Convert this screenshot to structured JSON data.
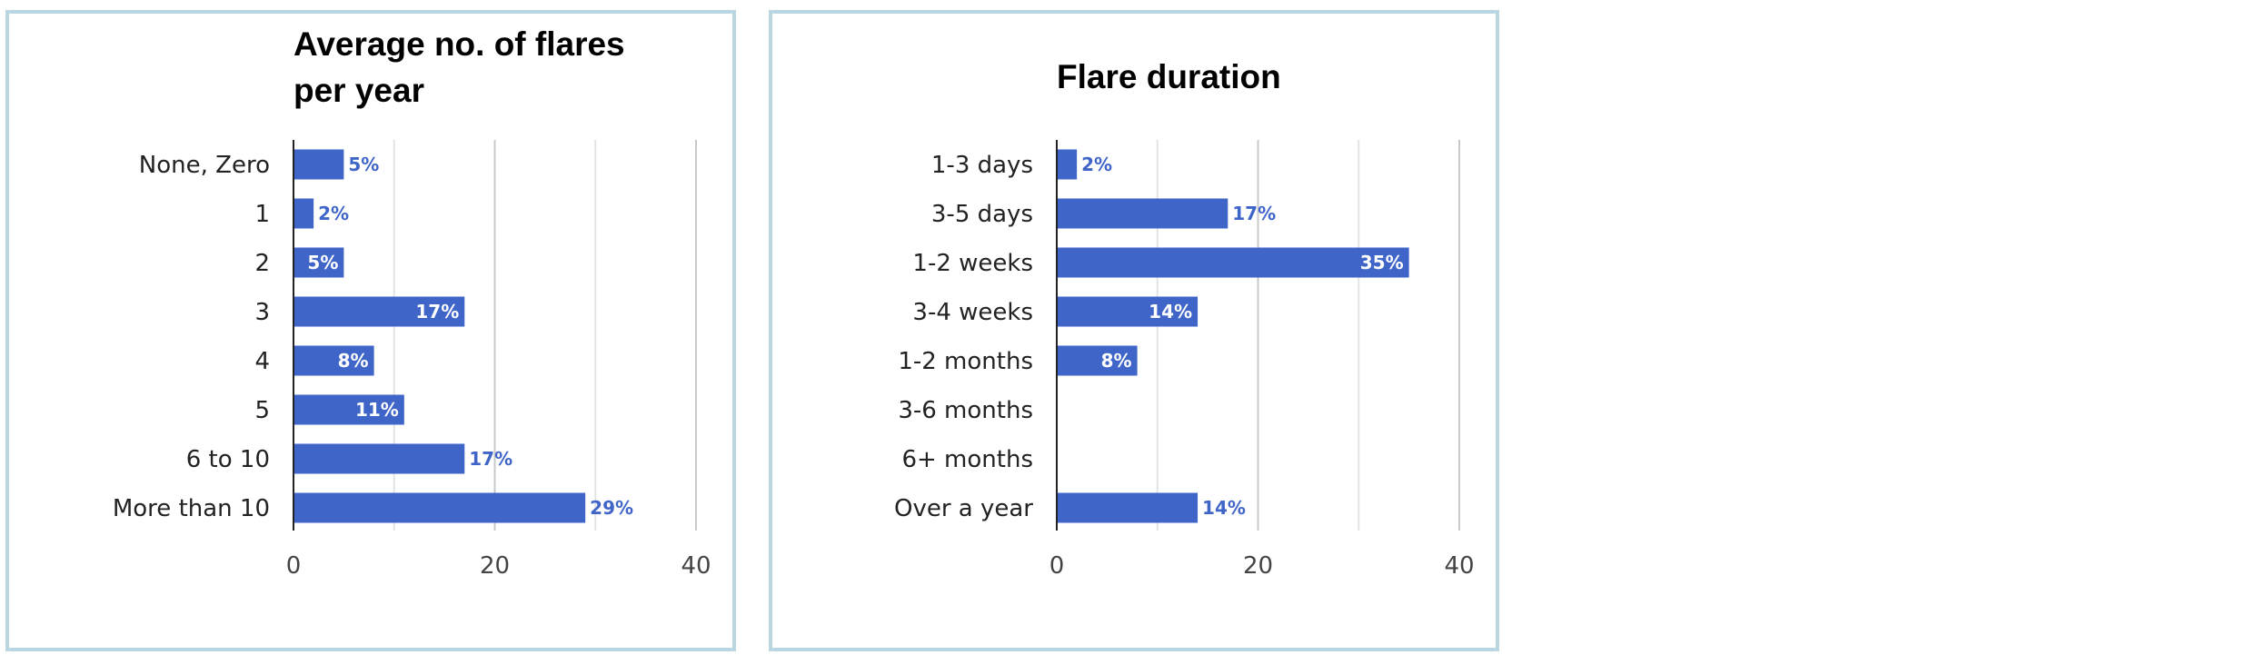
{
  "colors": {
    "bar": "#4065c8",
    "label_inside": "#ffffff",
    "label_outside": "#4065c8"
  },
  "chart_data": [
    {
      "type": "bar",
      "orientation": "horizontal",
      "title_lines": [
        "Average no. of flares",
        "per year"
      ],
      "categories": [
        "None, Zero",
        "1",
        "2",
        "3",
        "4",
        "5",
        "6 to 10",
        "More than 10"
      ],
      "values": [
        5,
        2,
        5,
        17,
        8,
        11,
        17,
        29
      ],
      "data_labels": [
        "5%",
        "2%",
        "5%",
        "17%",
        "8%",
        "11%",
        "17%",
        "29%"
      ],
      "xlim": [
        0,
        40
      ],
      "xticks": [
        "0",
        "20",
        "40"
      ],
      "grid": true,
      "legend": "none"
    },
    {
      "type": "bar",
      "orientation": "horizontal",
      "title_lines": [
        "Flare duration"
      ],
      "categories": [
        "1-3 days",
        "3-5 days",
        "1-2 weeks",
        "3-4 weeks",
        "1-2 months",
        "3-6 months",
        "6+ months",
        "Over a year"
      ],
      "values": [
        2,
        17,
        35,
        14,
        8,
        0,
        0,
        14
      ],
      "data_labels": [
        "2%",
        "17%",
        "35%",
        "14%",
        "8%",
        "",
        "",
        "14%"
      ],
      "xlim": [
        0,
        40
      ],
      "xticks": [
        "0",
        "20",
        "40"
      ],
      "grid": true,
      "legend": "none"
    }
  ]
}
